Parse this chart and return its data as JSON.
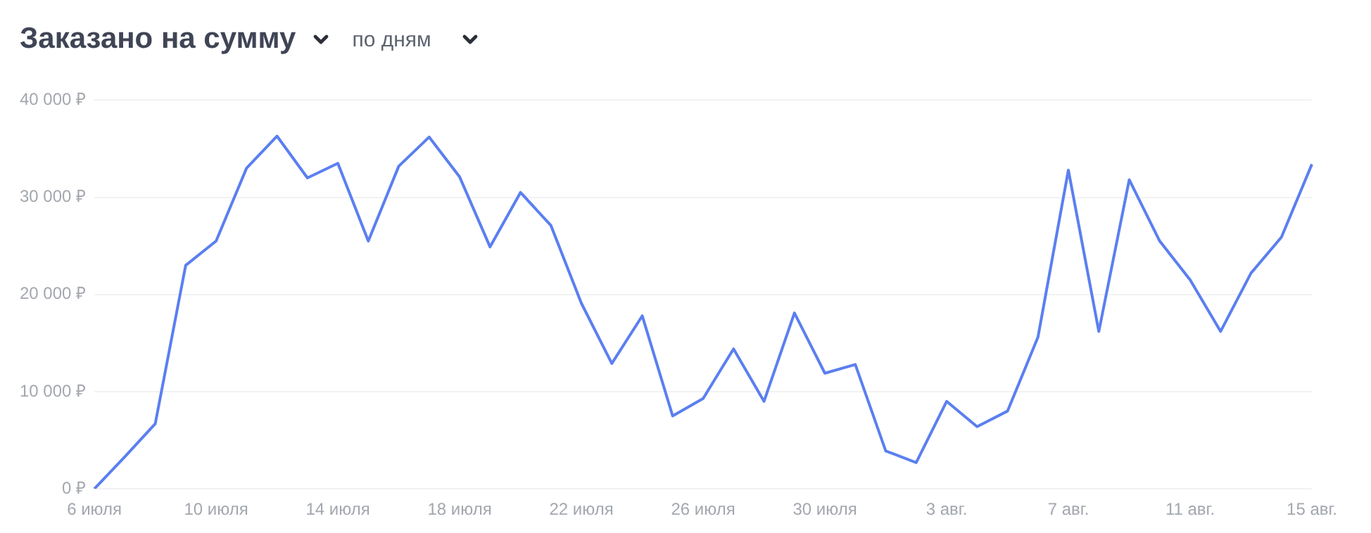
{
  "chart_data": {
    "type": "line",
    "title": "Заказано на сумму",
    "subtitle": "по дням",
    "categories": [
      "6 июля",
      null,
      null,
      null,
      "10 июля",
      null,
      null,
      null,
      "14 июля",
      null,
      null,
      null,
      "18 июля",
      null,
      null,
      null,
      "22 июля",
      null,
      null,
      null,
      "26 июля",
      null,
      null,
      null,
      "30 июля",
      null,
      null,
      null,
      "3 авг.",
      null,
      null,
      null,
      "7 авг.",
      null,
      null,
      null,
      "11 авг.",
      null,
      null,
      null,
      "15 авг."
    ],
    "series": [
      {
        "color": "#5b7ff0",
        "values": [
          0,
          3300,
          6700,
          23000,
          25500,
          33000,
          36300,
          32000,
          33500,
          25500,
          33200,
          36200,
          32100,
          24900,
          30500,
          27100,
          19100,
          12900,
          17800,
          7500,
          9300,
          14400,
          9000,
          18100,
          11900,
          12800,
          3900,
          2700,
          9000,
          6400,
          8000,
          15600,
          32800,
          16200,
          31800,
          25500,
          21500,
          16200,
          22200,
          25900,
          33400
        ]
      }
    ],
    "ylim": [
      0,
      40000
    ],
    "yticks": [
      {
        "value": 0,
        "label": "0 ₽"
      },
      {
        "value": 10000,
        "label": "10 000 ₽"
      },
      {
        "value": 20000,
        "label": "20 000 ₽"
      },
      {
        "value": 30000,
        "label": "30 000 ₽"
      },
      {
        "value": 40000,
        "label": "40 000 ₽"
      }
    ],
    "grid": "y",
    "legend": false,
    "marker": "none",
    "line_style": "solid"
  }
}
